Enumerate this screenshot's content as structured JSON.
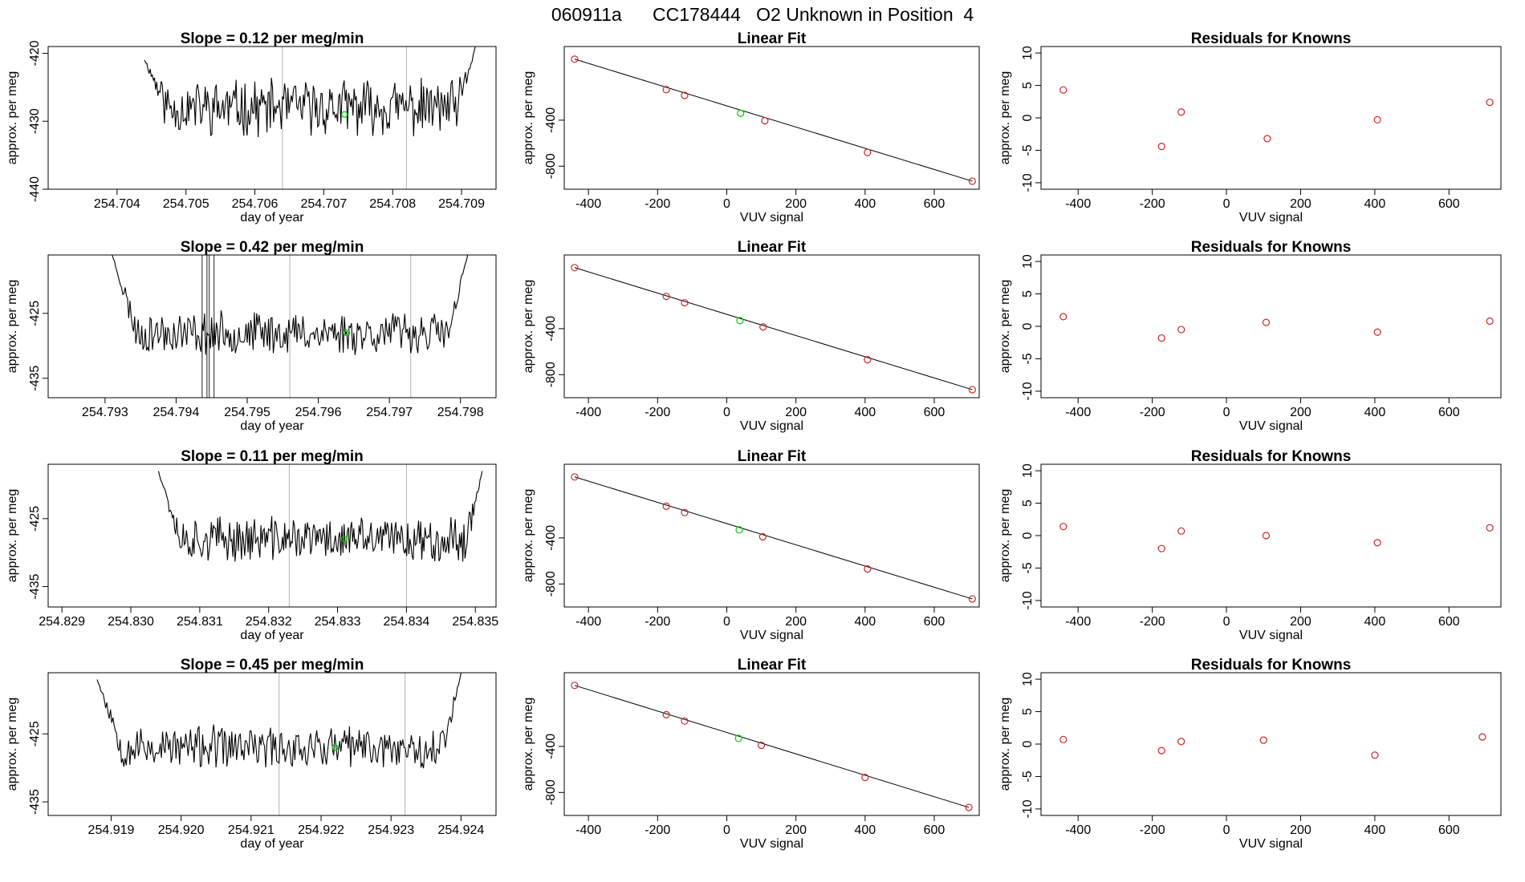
{
  "figure": {
    "title_id": "060911a",
    "title_cylinder": "CC178444",
    "title_desc": "O2 Unknown in Position",
    "title_pos": "4"
  },
  "colors": {
    "line": "#000000",
    "known": "#cd2626",
    "unknown": "#00cc00",
    "vline": "#bebebe"
  },
  "chart_data": [
    {
      "type": "line",
      "row": 1,
      "title": "Slope =  0.12  per meg/min",
      "xlabel": "day of year",
      "ylabel": "approx. per meg",
      "xlim": [
        254.703,
        254.7095
      ],
      "ylim": [
        -440,
        -419
      ],
      "xticks": [
        "254.704",
        "254.705",
        "254.706",
        "254.707",
        "254.708",
        "254.709"
      ],
      "yticks": [
        "-440",
        "-430",
        "-420"
      ],
      "data_start": 254.7044,
      "data_end": 254.7092,
      "baseline": -428,
      "amplitude": 3.5,
      "edge_start": -421,
      "edge_end": -419,
      "seed": 11,
      "vlines": [
        254.7064,
        254.7082
      ],
      "spikes": [],
      "unknown_point": [
        254.7073,
        -429
      ]
    },
    {
      "type": "scatter",
      "row": 1,
      "title": "Linear Fit",
      "xlabel": "VUV signal",
      "ylabel": "approx. per meg",
      "xlim": [
        -470,
        730
      ],
      "ylim": [
        -1000,
        240
      ],
      "xticks": [
        "-400",
        "-200",
        "0",
        "200",
        "400",
        "600"
      ],
      "yticks": [
        "-800",
        "-400"
      ],
      "fit_line": [
        [
          -440,
          130
        ],
        [
          710,
          -930
        ]
      ],
      "knowns": [
        [
          -440,
          130
        ],
        [
          -175,
          -135
        ],
        [
          -122,
          -185
        ],
        [
          110,
          -405
        ],
        [
          407,
          -680
        ],
        [
          710,
          -930
        ]
      ],
      "unknown": [
        [
          40,
          -340
        ]
      ]
    },
    {
      "type": "scatter",
      "row": 1,
      "title": "Residuals for Knowns",
      "xlabel": "VUV signal",
      "ylabel": "approx. per meg",
      "xlim": [
        -500,
        740
      ],
      "ylim": [
        -11,
        11
      ],
      "xticks": [
        "-400",
        "-200",
        "0",
        "200",
        "400",
        "600"
      ],
      "yticks": [
        "-10",
        "-5",
        "0",
        "5",
        "10"
      ],
      "knowns": [
        [
          -440,
          4.3
        ],
        [
          -175,
          -4.4
        ],
        [
          -122,
          0.9
        ],
        [
          110,
          -3.2
        ],
        [
          407,
          -0.3
        ],
        [
          710,
          2.4
        ]
      ]
    },
    {
      "type": "line",
      "row": 2,
      "title": "Slope =  0.42  per meg/min",
      "xlabel": "day of year",
      "ylabel": "approx. per meg",
      "xlim": [
        254.7922,
        254.7985
      ],
      "ylim": [
        -438,
        -416
      ],
      "xticks": [
        "254.793",
        "254.794",
        "254.795",
        "254.796",
        "254.797",
        "254.798"
      ],
      "yticks": [
        "-435",
        "-425"
      ],
      "data_start": 254.7931,
      "data_end": 254.7981,
      "baseline": -428,
      "amplitude": 2.8,
      "edge_start": -416,
      "edge_end": -416,
      "seed": 23,
      "vlines": [
        254.7956,
        254.7973
      ],
      "spikes": [
        254.7944,
        254.7945
      ],
      "unknown_point": [
        254.7964,
        -428
      ]
    },
    {
      "type": "scatter",
      "row": 2,
      "title": "Linear Fit",
      "xlabel": "VUV signal",
      "ylabel": "approx. per meg",
      "xlim": [
        -470,
        730
      ],
      "ylim": [
        -1000,
        240
      ],
      "xticks": [
        "-400",
        "-200",
        "0",
        "200",
        "400",
        "600"
      ],
      "yticks": [
        "-800",
        "-400"
      ],
      "fit_line": [
        [
          -440,
          130
        ],
        [
          710,
          -930
        ]
      ],
      "knowns": [
        [
          -440,
          130
        ],
        [
          -175,
          -120
        ],
        [
          -122,
          -175
        ],
        [
          105,
          -385
        ],
        [
          407,
          -670
        ],
        [
          710,
          -930
        ]
      ],
      "unknown": [
        [
          38,
          -330
        ]
      ]
    },
    {
      "type": "scatter",
      "row": 2,
      "title": "Residuals for Knowns",
      "xlabel": "VUV signal",
      "ylabel": "approx. per meg",
      "xlim": [
        -500,
        740
      ],
      "ylim": [
        -11,
        11
      ],
      "xticks": [
        "-400",
        "-200",
        "0",
        "200",
        "400",
        "600"
      ],
      "yticks": [
        "-10",
        "-5",
        "0",
        "5",
        "10"
      ],
      "knowns": [
        [
          -440,
          1.5
        ],
        [
          -175,
          -1.8
        ],
        [
          -122,
          -0.5
        ],
        [
          107,
          0.6
        ],
        [
          407,
          -0.9
        ],
        [
          710,
          0.8
        ]
      ]
    },
    {
      "type": "line",
      "row": 3,
      "title": "Slope =  0.11  per meg/min",
      "xlabel": "day of year",
      "ylabel": "approx. per meg",
      "xlim": [
        254.8288,
        254.8353
      ],
      "ylim": [
        -438,
        -417
      ],
      "xticks": [
        "254.829",
        "254.830",
        "254.831",
        "254.832",
        "254.833",
        "254.834",
        "254.835"
      ],
      "yticks": [
        "-435",
        "-425"
      ],
      "data_start": 254.8304,
      "data_end": 254.8351,
      "baseline": -428,
      "amplitude": 2.8,
      "edge_start": -418,
      "edge_end": -418,
      "seed": 37,
      "vlines": [
        254.8323,
        254.834
      ],
      "spikes": [],
      "unknown_point": [
        254.8331,
        -428
      ]
    },
    {
      "type": "scatter",
      "row": 3,
      "title": "Linear Fit",
      "xlabel": "VUV signal",
      "ylabel": "approx. per meg",
      "xlim": [
        -470,
        730
      ],
      "ylim": [
        -1000,
        240
      ],
      "xticks": [
        "-400",
        "-200",
        "0",
        "200",
        "400",
        "600"
      ],
      "yticks": [
        "-800",
        "-400"
      ],
      "fit_line": [
        [
          -440,
          130
        ],
        [
          710,
          -930
        ]
      ],
      "knowns": [
        [
          -440,
          130
        ],
        [
          -175,
          -125
        ],
        [
          -122,
          -180
        ],
        [
          104,
          -390
        ],
        [
          407,
          -670
        ],
        [
          710,
          -930
        ]
      ],
      "unknown": [
        [
          36,
          -330
        ]
      ]
    },
    {
      "type": "scatter",
      "row": 3,
      "title": "Residuals for Knowns",
      "xlabel": "VUV signal",
      "ylabel": "approx. per meg",
      "xlim": [
        -500,
        740
      ],
      "ylim": [
        -11,
        11
      ],
      "xticks": [
        "-400",
        "-200",
        "0",
        "200",
        "400",
        "600"
      ],
      "yticks": [
        "-10",
        "-5",
        "0",
        "5",
        "10"
      ],
      "knowns": [
        [
          -440,
          1.4
        ],
        [
          -175,
          -2.0
        ],
        [
          -122,
          0.7
        ],
        [
          107,
          0.0
        ],
        [
          407,
          -1.1
        ],
        [
          710,
          1.2
        ]
      ]
    },
    {
      "type": "line",
      "row": 4,
      "title": "Slope =  0.45  per meg/min",
      "xlabel": "day of year",
      "ylabel": "approx. per meg",
      "xlim": [
        254.9181,
        254.9245
      ],
      "ylim": [
        -437,
        -416
      ],
      "xticks": [
        "254.919",
        "254.920",
        "254.921",
        "254.922",
        "254.923",
        "254.924"
      ],
      "yticks": [
        "-435",
        "-425"
      ],
      "data_start": 254.9188,
      "data_end": 254.924,
      "baseline": -427,
      "amplitude": 2.7,
      "edge_start": -417,
      "edge_end": -416,
      "seed": 53,
      "vlines": [
        254.9214,
        254.9232
      ],
      "spikes": [],
      "unknown_point": [
        254.9222,
        -427
      ]
    },
    {
      "type": "scatter",
      "row": 4,
      "title": "Linear Fit",
      "xlabel": "VUV signal",
      "ylabel": "approx. per meg",
      "xlim": [
        -470,
        730
      ],
      "ylim": [
        -1000,
        240
      ],
      "xticks": [
        "-400",
        "-200",
        "0",
        "200",
        "400",
        "600"
      ],
      "yticks": [
        "-800",
        "-400"
      ],
      "fit_line": [
        [
          -440,
          130
        ],
        [
          700,
          -930
        ]
      ],
      "knowns": [
        [
          -440,
          130
        ],
        [
          -175,
          -125
        ],
        [
          -122,
          -180
        ],
        [
          100,
          -390
        ],
        [
          400,
          -670
        ],
        [
          700,
          -930
        ]
      ],
      "unknown": [
        [
          34,
          -330
        ]
      ]
    },
    {
      "type": "scatter",
      "row": 4,
      "title": "Residuals for Knowns",
      "xlabel": "VUV signal",
      "ylabel": "approx. per meg",
      "xlim": [
        -500,
        740
      ],
      "ylim": [
        -11,
        11
      ],
      "xticks": [
        "-400",
        "-200",
        "0",
        "200",
        "400",
        "600"
      ],
      "yticks": [
        "-10",
        "-5",
        "0",
        "5",
        "10"
      ],
      "knowns": [
        [
          -440,
          0.7
        ],
        [
          -175,
          -1.0
        ],
        [
          -122,
          0.4
        ],
        [
          100,
          0.6
        ],
        [
          400,
          -1.7
        ],
        [
          690,
          1.1
        ]
      ]
    }
  ]
}
